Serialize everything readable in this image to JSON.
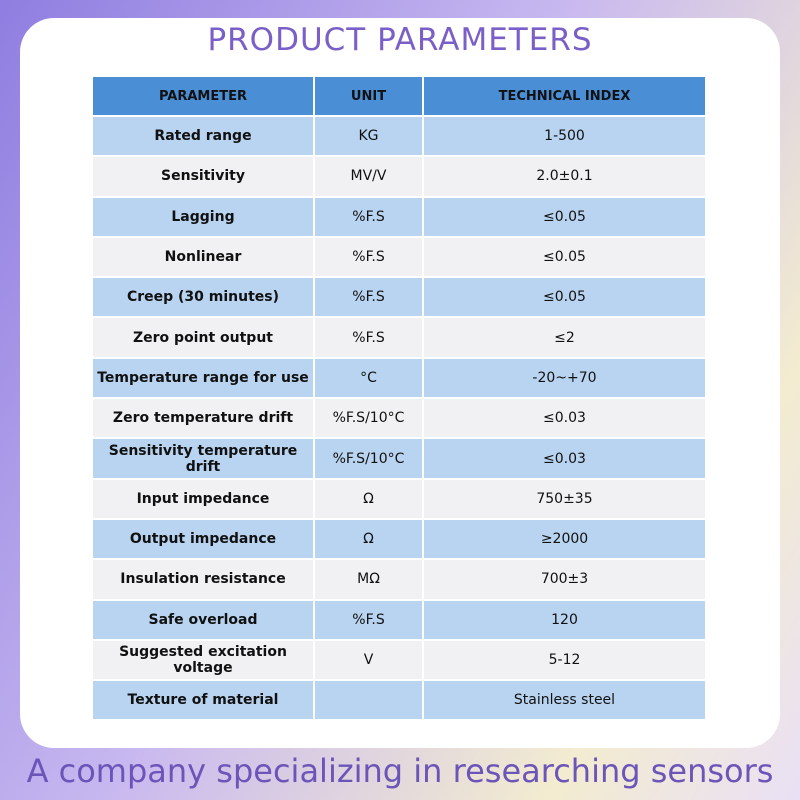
{
  "title": "PRODUCT PARAMETERS",
  "table": {
    "headers": [
      "PARAMETER",
      "UNIT",
      "TECHNICAL INDEX"
    ],
    "rows": [
      [
        "Rated range",
        "KG",
        "1-500"
      ],
      [
        "Sensitivity",
        "MV/V",
        "2.0±0.1"
      ],
      [
        "Lagging",
        "%F.S",
        "≤0.05"
      ],
      [
        "Nonlinear",
        "%F.S",
        "≤0.05"
      ],
      [
        "Creep (30 minutes)",
        "%F.S",
        "≤0.05"
      ],
      [
        "Zero point output",
        "%F.S",
        "≤2"
      ],
      [
        "Temperature range for use",
        "°C",
        "-20~+70"
      ],
      [
        "Zero temperature drift",
        "%F.S/10°C",
        "≤0.03"
      ],
      [
        "Sensitivity temperature drift",
        "%F.S/10°C",
        "≤0.03"
      ],
      [
        "Input impedance",
        "Ω",
        "750±35"
      ],
      [
        "Output impedance",
        "Ω",
        "≥2000"
      ],
      [
        "Insulation resistance",
        "MΩ",
        "700±3"
      ],
      [
        "Safe overload",
        "%F.S",
        "120"
      ],
      [
        "Suggested excitation voltage",
        "V",
        "5-12"
      ],
      [
        "Texture of material",
        null,
        "Stainless steel"
      ]
    ]
  },
  "footer": "A company specializing in researching sensors"
}
